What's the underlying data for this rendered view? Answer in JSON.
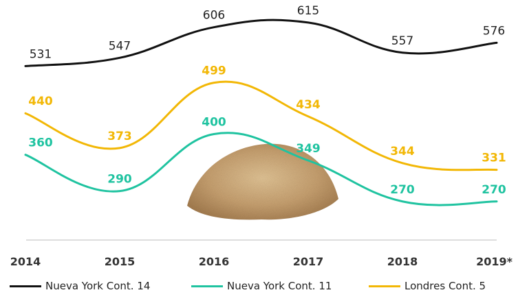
{
  "chart_data": {
    "type": "line",
    "categories": [
      "2014",
      "2015",
      "2016",
      "2017",
      "2018",
      "2019"
    ],
    "x_tick_labels": [
      "2014",
      "2015",
      "2016",
      "2017",
      "2018",
      "2019*"
    ],
    "series": [
      {
        "name": "Nueva York Cont. 14",
        "color": "#111111",
        "values": [
          531,
          547,
          606,
          615,
          557,
          576
        ],
        "label_style": "regular"
      },
      {
        "name": "Londres Cont. 5",
        "color": "#F2B705",
        "values": [
          440,
          373,
          499,
          434,
          344,
          331
        ],
        "label_style": "bold"
      },
      {
        "name": "Nueva York Cont. 11",
        "color": "#1FC3A0",
        "values": [
          360,
          290,
          400,
          349,
          270,
          270
        ],
        "label_style": "bold"
      }
    ],
    "ylim": [
      230,
      640
    ],
    "legend_order": [
      "Nueva York Cont. 14",
      "Nueva York Cont. 11",
      "Londres Cont. 5"
    ],
    "legend_position": "bottom",
    "grid": false,
    "title": "",
    "xlabel": "",
    "ylabel": ""
  },
  "colors": {
    "axis": "#bbbbbb",
    "sugar_light": "#d8b98c",
    "sugar_dark": "#b48a55"
  }
}
